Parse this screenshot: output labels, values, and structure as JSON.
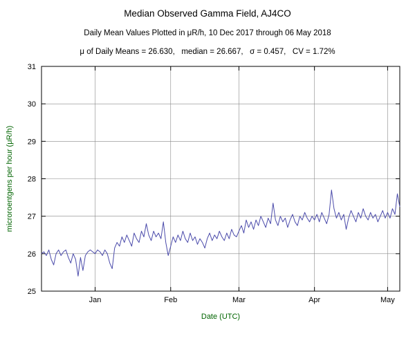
{
  "title": "Median Observed Gamma Field, AJ4CO",
  "subtitle": "Daily Mean Values Plotted in μR/h, 10 Dec 2017 through 06 May 2018",
  "stats_line": "μ of Daily Means = 26.630,   median = 26.667,   σ = 0.457,   CV = 1.72%",
  "chart_data": {
    "type": "line",
    "title": "Median Observed Gamma Field, AJ4CO",
    "subtitle": "Daily Mean Values Plotted in μR/h, 10 Dec 2017 through 06 May 2018",
    "xlabel": "Date (UTC)",
    "ylabel": "microroentgens per hour (μR/h)",
    "ylim": [
      25,
      31
    ],
    "yticks": [
      25,
      26,
      27,
      28,
      29,
      30,
      31
    ],
    "x_start_label": "10 Dec 2017",
    "x_end_label": "06 May 2018",
    "x_days_total": 147,
    "xticks": [
      {
        "label": "Jan",
        "day": 22
      },
      {
        "label": "Feb",
        "day": 53
      },
      {
        "label": "Mar",
        "day": 81
      },
      {
        "label": "Apr",
        "day": 112
      },
      {
        "label": "May",
        "day": 142
      }
    ],
    "grid": true,
    "line_color": "#4a4aaa",
    "stats": {
      "mean_of_daily_means": 26.63,
      "median": 26.667,
      "sigma": 0.457,
      "cv_percent": 1.72
    },
    "series": [
      {
        "name": "daily-mean-gamma",
        "values": [
          26.0,
          26.05,
          25.95,
          26.1,
          25.85,
          25.7,
          26.0,
          26.1,
          25.95,
          26.05,
          26.1,
          25.9,
          25.75,
          26.0,
          25.85,
          25.4,
          25.9,
          25.55,
          25.95,
          26.05,
          26.1,
          26.05,
          26.0,
          26.1,
          26.05,
          25.95,
          26.1,
          26.0,
          25.75,
          25.6,
          26.15,
          26.3,
          26.2,
          26.45,
          26.3,
          26.5,
          26.35,
          26.2,
          26.55,
          26.4,
          26.3,
          26.6,
          26.45,
          26.8,
          26.5,
          26.35,
          26.6,
          26.45,
          26.55,
          26.4,
          26.85,
          26.3,
          25.95,
          26.2,
          26.45,
          26.3,
          26.5,
          26.35,
          26.6,
          26.4,
          26.3,
          26.55,
          26.35,
          26.45,
          26.25,
          26.4,
          26.3,
          26.15,
          26.4,
          26.55,
          26.35,
          26.5,
          26.4,
          26.6,
          26.45,
          26.35,
          26.55,
          26.4,
          26.65,
          26.5,
          26.45,
          26.6,
          26.75,
          26.55,
          26.9,
          26.7,
          26.85,
          26.65,
          26.9,
          26.75,
          27.0,
          26.85,
          26.7,
          26.95,
          26.8,
          27.35,
          26.9,
          26.75,
          27.0,
          26.85,
          26.95,
          26.7,
          26.9,
          27.05,
          26.85,
          26.75,
          27.0,
          26.9,
          27.1,
          26.95,
          26.85,
          27.0,
          26.9,
          27.05,
          26.85,
          27.1,
          26.95,
          26.8,
          27.05,
          27.7,
          27.2,
          26.95,
          27.1,
          26.9,
          27.05,
          26.65,
          26.95,
          27.15,
          27.0,
          26.85,
          27.1,
          26.95,
          27.2,
          27.0,
          26.9,
          27.1,
          26.95,
          27.05,
          26.85,
          27.0,
          27.15,
          26.95,
          27.1,
          26.95,
          27.2,
          27.05,
          27.6,
          27.25
        ]
      }
    ]
  }
}
